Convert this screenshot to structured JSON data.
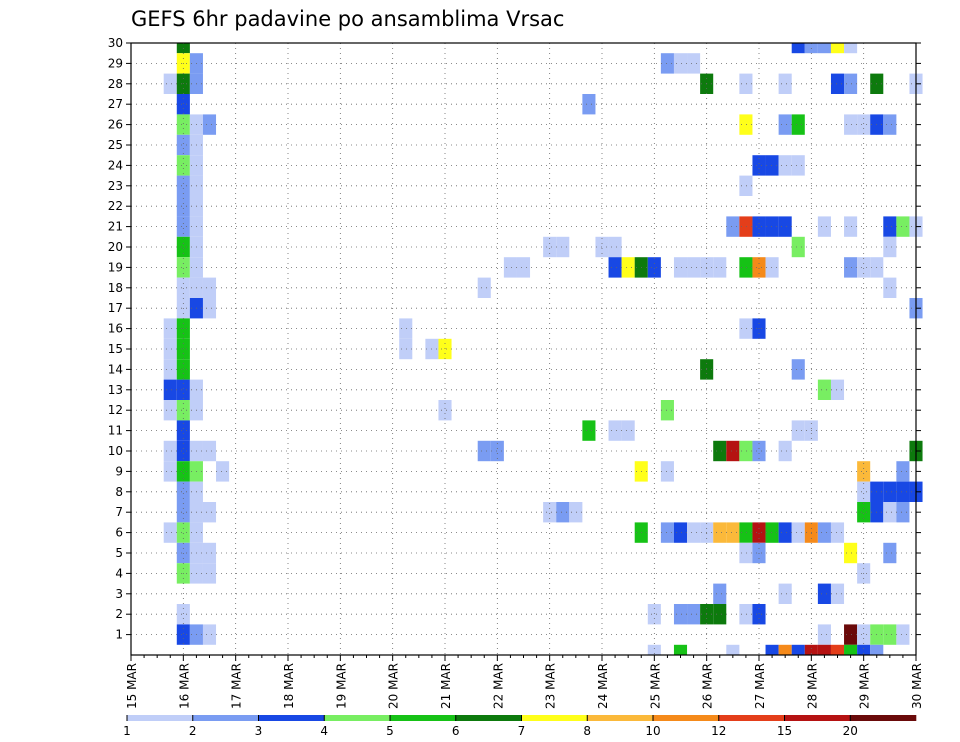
{
  "chart_data": {
    "type": "heatmap",
    "title": "GEFS 6hr padavine po ansamblima Vrsac",
    "x_tick_labels": [
      "15 MAR",
      "16 MAR",
      "17 MAR",
      "18 MAR",
      "19 MAR",
      "20 MAR",
      "21 MAR",
      "22 MAR",
      "23 MAR",
      "24 MAR",
      "25 MAR",
      "26 MAR",
      "27 MAR",
      "28 MAR",
      "29 MAR",
      "30 MAR"
    ],
    "y_tick_labels": [
      "1",
      "2",
      "3",
      "4",
      "5",
      "6",
      "7",
      "8",
      "9",
      "10",
      "11",
      "12",
      "13",
      "14",
      "15",
      "16",
      "17",
      "18",
      "19",
      "20",
      "21",
      "22",
      "23",
      "24",
      "25",
      "26",
      "27",
      "28",
      "29",
      "30"
    ],
    "xlim": [
      15,
      30
    ],
    "ylim": [
      0,
      30
    ],
    "x_unit": "days of March (6-hour steps)",
    "y_unit": "ensemble member",
    "grid": true,
    "colorbar": {
      "position": "bottom",
      "tick_labels": [
        "1",
        "2",
        "3",
        "4",
        "5",
        "6",
        "7",
        "8",
        "10",
        "12",
        "15",
        "20"
      ],
      "colors": [
        "#c0cef8",
        "#7a9cf2",
        "#1848e4",
        "#78ee62",
        "#16c216",
        "#0d7a0d",
        "#ffff1a",
        "#fbb93a",
        "#f58a1a",
        "#e43e1a",
        "#b51212",
        "#6a0a0a"
      ]
    },
    "cells": [
      [
        16,
        30,
        6
      ],
      [
        27.75,
        30,
        3
      ],
      [
        28,
        30,
        2
      ],
      [
        28.25,
        30,
        2
      ],
      [
        28.5,
        30,
        7
      ],
      [
        28.75,
        30,
        1
      ],
      [
        16,
        29,
        7
      ],
      [
        16.25,
        29,
        2
      ],
      [
        25.25,
        29,
        2
      ],
      [
        25.5,
        29,
        1
      ],
      [
        25.75,
        29,
        1
      ],
      [
        15.75,
        28,
        1
      ],
      [
        16,
        28,
        6
      ],
      [
        16.25,
        28,
        2
      ],
      [
        26,
        28,
        6
      ],
      [
        26.75,
        28,
        1
      ],
      [
        27.5,
        28,
        1
      ],
      [
        28.5,
        28,
        3
      ],
      [
        28.75,
        28,
        2
      ],
      [
        29.25,
        28,
        6
      ],
      [
        30,
        28,
        1
      ],
      [
        16,
        27,
        3
      ],
      [
        23.75,
        27,
        2
      ],
      [
        16,
        26,
        4
      ],
      [
        16.25,
        26,
        1
      ],
      [
        16.5,
        26,
        2
      ],
      [
        26.75,
        26,
        7
      ],
      [
        27.5,
        26,
        2
      ],
      [
        27.75,
        26,
        5
      ],
      [
        28.75,
        26,
        1
      ],
      [
        29,
        26,
        1
      ],
      [
        29.25,
        26,
        3
      ],
      [
        29.5,
        26,
        2
      ],
      [
        16,
        25,
        2
      ],
      [
        16.25,
        25,
        1
      ],
      [
        16,
        24,
        4
      ],
      [
        16.25,
        24,
        1
      ],
      [
        27,
        24,
        3
      ],
      [
        27.25,
        24,
        3
      ],
      [
        27.5,
        24,
        1
      ],
      [
        27.75,
        24,
        1
      ],
      [
        16,
        23,
        2
      ],
      [
        16.25,
        23,
        1
      ],
      [
        26.75,
        23,
        1
      ],
      [
        16,
        22,
        2
      ],
      [
        16.25,
        22,
        1
      ],
      [
        16,
        21,
        2
      ],
      [
        16.25,
        21,
        1
      ],
      [
        26.5,
        21,
        2
      ],
      [
        26.75,
        21,
        10
      ],
      [
        27,
        21,
        3
      ],
      [
        27.25,
        21,
        3
      ],
      [
        27.5,
        21,
        3
      ],
      [
        28.25,
        21,
        1
      ],
      [
        28.75,
        21,
        1
      ],
      [
        29.5,
        21,
        3
      ],
      [
        29.75,
        21,
        4
      ],
      [
        30,
        21,
        1
      ],
      [
        16,
        20,
        5
      ],
      [
        16.25,
        20,
        1
      ],
      [
        23,
        20,
        1
      ],
      [
        23.25,
        20,
        1
      ],
      [
        24,
        20,
        1
      ],
      [
        24.25,
        20,
        1
      ],
      [
        27.75,
        20,
        4
      ],
      [
        29.5,
        20,
        1
      ],
      [
        16,
        19,
        4
      ],
      [
        16.25,
        19,
        1
      ],
      [
        22.25,
        19,
        1
      ],
      [
        22.5,
        19,
        1
      ],
      [
        24.25,
        19,
        3
      ],
      [
        24.5,
        19,
        7
      ],
      [
        24.75,
        19,
        6
      ],
      [
        25,
        19,
        3
      ],
      [
        25.5,
        19,
        1
      ],
      [
        25.75,
        19,
        1
      ],
      [
        26,
        19,
        1
      ],
      [
        26.25,
        19,
        1
      ],
      [
        26.75,
        19,
        5
      ],
      [
        27,
        19,
        9
      ],
      [
        27.25,
        19,
        1
      ],
      [
        28.75,
        19,
        2
      ],
      [
        29,
        19,
        1
      ],
      [
        29.25,
        19,
        1
      ],
      [
        16,
        18,
        1
      ],
      [
        16.25,
        18,
        1
      ],
      [
        16.5,
        18,
        1
      ],
      [
        21.75,
        18,
        1
      ],
      [
        29.5,
        18,
        1
      ],
      [
        16,
        17,
        1
      ],
      [
        16.25,
        17,
        3
      ],
      [
        16.5,
        17,
        1
      ],
      [
        30,
        17,
        2
      ],
      [
        15.75,
        16,
        1
      ],
      [
        16,
        16,
        5
      ],
      [
        20.25,
        16,
        1
      ],
      [
        26.75,
        16,
        1
      ],
      [
        27,
        16,
        3
      ],
      [
        15.75,
        15,
        1
      ],
      [
        16,
        15,
        5
      ],
      [
        20.25,
        15,
        1
      ],
      [
        20.75,
        15,
        1
      ],
      [
        21,
        15,
        7
      ],
      [
        15.75,
        14,
        1
      ],
      [
        16,
        14,
        5
      ],
      [
        26,
        14,
        6
      ],
      [
        27.75,
        14,
        2
      ],
      [
        15.75,
        13,
        3
      ],
      [
        16,
        13,
        3
      ],
      [
        16.25,
        13,
        1
      ],
      [
        28.25,
        13,
        4
      ],
      [
        28.5,
        13,
        1
      ],
      [
        15.75,
        12,
        1
      ],
      [
        16,
        12,
        4
      ],
      [
        16.25,
        12,
        1
      ],
      [
        21,
        12,
        1
      ],
      [
        25.25,
        12,
        4
      ],
      [
        16,
        11,
        3
      ],
      [
        23.75,
        11,
        5
      ],
      [
        24.25,
        11,
        1
      ],
      [
        24.5,
        11,
        1
      ],
      [
        27.75,
        11,
        1
      ],
      [
        28,
        11,
        1
      ],
      [
        15.75,
        10,
        1
      ],
      [
        16,
        10,
        3
      ],
      [
        16.25,
        10,
        1
      ],
      [
        16.5,
        10,
        1
      ],
      [
        21.75,
        10,
        2
      ],
      [
        22,
        10,
        2
      ],
      [
        26.25,
        10,
        6
      ],
      [
        26.5,
        10,
        11
      ],
      [
        26.75,
        10,
        4
      ],
      [
        27,
        10,
        2
      ],
      [
        27.5,
        10,
        1
      ],
      [
        30,
        10,
        6
      ],
      [
        15.75,
        9,
        1
      ],
      [
        16,
        9,
        5
      ],
      [
        16.25,
        9,
        4
      ],
      [
        16.75,
        9,
        1
      ],
      [
        24.75,
        9,
        7
      ],
      [
        25.25,
        9,
        1
      ],
      [
        29,
        9,
        8
      ],
      [
        29.75,
        9,
        2
      ],
      [
        16,
        8,
        2
      ],
      [
        16.25,
        8,
        1
      ],
      [
        29,
        8,
        1
      ],
      [
        29.25,
        8,
        3
      ],
      [
        29.5,
        8,
        3
      ],
      [
        29.75,
        8,
        3
      ],
      [
        30,
        8,
        3
      ],
      [
        16,
        7,
        2
      ],
      [
        16.25,
        7,
        1
      ],
      [
        16.5,
        7,
        1
      ],
      [
        23,
        7,
        1
      ],
      [
        23.25,
        7,
        2
      ],
      [
        23.5,
        7,
        1
      ],
      [
        29.25,
        7,
        3
      ],
      [
        29.5,
        7,
        1
      ],
      [
        29.75,
        7,
        2
      ],
      [
        29,
        7,
        5
      ],
      [
        15.75,
        6,
        1
      ],
      [
        16,
        6,
        4
      ],
      [
        16.25,
        6,
        1
      ],
      [
        24.75,
        6,
        5
      ],
      [
        25.25,
        6,
        2
      ],
      [
        25.5,
        6,
        3
      ],
      [
        25.75,
        6,
        1
      ],
      [
        26,
        6,
        1
      ],
      [
        26.25,
        6,
        8
      ],
      [
        26.5,
        6,
        8
      ],
      [
        26.75,
        6,
        5
      ],
      [
        27,
        6,
        11
      ],
      [
        27.25,
        6,
        5
      ],
      [
        27.5,
        6,
        3
      ],
      [
        27.75,
        6,
        1
      ],
      [
        28,
        6,
        9
      ],
      [
        28.25,
        6,
        2
      ],
      [
        28.5,
        6,
        1
      ],
      [
        16,
        5,
        2
      ],
      [
        16.25,
        5,
        1
      ],
      [
        16.5,
        5,
        1
      ],
      [
        26.75,
        5,
        1
      ],
      [
        27,
        5,
        2
      ],
      [
        28.75,
        5,
        7
      ],
      [
        29.5,
        5,
        2
      ],
      [
        16,
        4,
        4
      ],
      [
        16.25,
        4,
        1
      ],
      [
        16.5,
        4,
        1
      ],
      [
        29,
        4,
        1
      ],
      [
        26.25,
        3,
        2
      ],
      [
        27.5,
        3,
        1
      ],
      [
        28.25,
        3,
        3
      ],
      [
        28.5,
        3,
        1
      ],
      [
        16,
        2,
        1
      ],
      [
        25,
        2,
        1
      ],
      [
        25.5,
        2,
        2
      ],
      [
        25.75,
        2,
        2
      ],
      [
        26,
        2,
        6
      ],
      [
        26.25,
        2,
        6
      ],
      [
        26.75,
        2,
        1
      ],
      [
        27,
        2,
        3
      ],
      [
        16,
        1,
        3
      ],
      [
        16.25,
        1,
        2
      ],
      [
        16.5,
        1,
        1
      ],
      [
        28.25,
        1,
        1
      ],
      [
        28.75,
        1,
        12
      ],
      [
        29,
        1,
        1
      ],
      [
        29.25,
        1,
        4
      ],
      [
        29.5,
        1,
        4
      ],
      [
        29.75,
        1,
        1
      ],
      [
        25,
        0,
        1
      ],
      [
        25.5,
        0,
        5
      ],
      [
        26.5,
        0,
        1
      ],
      [
        27.25,
        0,
        3
      ],
      [
        27.5,
        0,
        9
      ],
      [
        27.75,
        0,
        3
      ],
      [
        28,
        0,
        11
      ],
      [
        28.25,
        0,
        11
      ],
      [
        28.5,
        0,
        10
      ],
      [
        28.75,
        0,
        5
      ],
      [
        29,
        0,
        3
      ],
      [
        29.25,
        0,
        2
      ]
    ]
  }
}
